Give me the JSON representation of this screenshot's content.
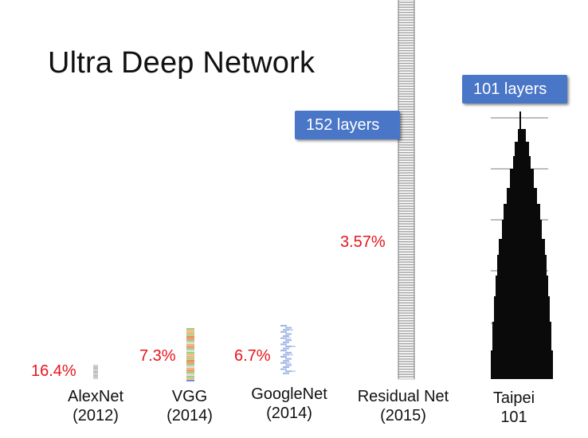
{
  "slide": {
    "title": "Ultra Deep Network"
  },
  "badges": {
    "resnet": "152 layers",
    "taipei": "101 layers"
  },
  "error_rates": {
    "alexnet": "16.4%",
    "vgg": "7.3%",
    "googlenet": "6.7%",
    "resnet": "3.57%"
  },
  "models": [
    {
      "name": "AlexNet",
      "year": "(2012)"
    },
    {
      "name": "VGG",
      "year": "(2014)"
    },
    {
      "name": "GoogleNet",
      "year": "(2014)"
    },
    {
      "name": "Residual Net",
      "year": "(2015)"
    }
  ],
  "building": {
    "name": "Taipei",
    "number": "101"
  },
  "colors": {
    "badge_bg": "#4a76c8",
    "error_text": "#e8141b",
    "stack_gray": "#9a9a9a",
    "tower": "#0a0a0a"
  }
}
